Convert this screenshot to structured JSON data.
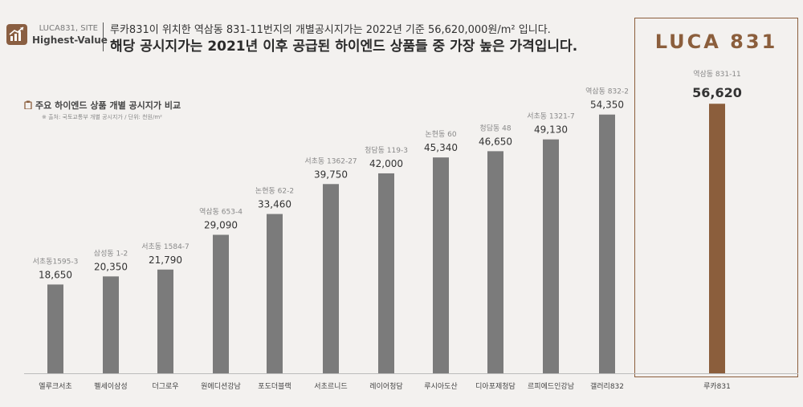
{
  "header": {
    "site_name": "LUCA831, SITE",
    "site_tag": "Highest-Value",
    "headline_line1": "루카831이 위치한 역삼동 831-11번지의 개별공시지가는 2022년 기준 56,620,000원/m² 입니다.",
    "headline_line2": "해당 공시지가는 2021년 이후 공급된 하이엔드 상품들 중 가장 높은 가격입니다.",
    "icon": "rising-chart-icon"
  },
  "panel": {
    "title": "주요 하이엔드 상품 개별 공시지가 비교",
    "note": "※ 출처: 국토교통부 개별 공시지가 / 단위: 천원/m²"
  },
  "highlight": {
    "brand": "LUCA 831",
    "accent_color": "#8b5e3c"
  },
  "chart_data": {
    "type": "bar",
    "categories": [
      "엘루크서초",
      "펠세이삼성",
      "더그로우",
      "원에디션강남",
      "포도더블랙",
      "서초르니드",
      "레이어청담",
      "루시아도산",
      "디아포제청담",
      "르피에드인강남",
      "갤러리832",
      "루카831"
    ],
    "locations": [
      "서초동1595-3",
      "삼성동 1-2",
      "서초동 1584-7",
      "역삼동 653-4",
      "논현동 62-2",
      "서초동 1362-27",
      "청담동 119-3",
      "논현동 60",
      "청담동 48",
      "서초동 1321-7",
      "역삼동 832-2",
      "역삼동 831-11"
    ],
    "values": [
      18650,
      20350,
      21790,
      29090,
      33460,
      39750,
      42000,
      45340,
      46650,
      49130,
      54350,
      56620
    ],
    "value_labels": [
      "18,650",
      "20,350",
      "21,790",
      "29,090",
      "33,460",
      "39,750",
      "42,000",
      "45,340",
      "46,650",
      "49,130",
      "54,350",
      "56,620"
    ],
    "highlight_index": 11,
    "bar_color": "#7b7b7b",
    "highlight_color": "#8b5e3c",
    "ylim": [
      0,
      60000
    ],
    "grid": false
  }
}
